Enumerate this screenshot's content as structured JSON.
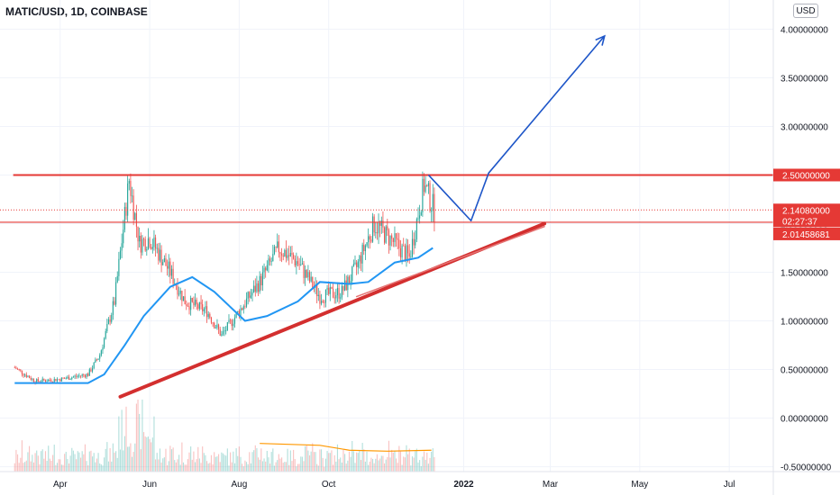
{
  "header": {
    "symbol": "MATIC/USD, 1D, COINBASE",
    "currency": "USD"
  },
  "chart_data": {
    "type": "candlestick",
    "y_ticks": [
      "4.00000000",
      "3.50000000",
      "3.00000000",
      "2.50000000",
      "2.00000000",
      "1.50000000",
      "1.00000000",
      "0.50000000",
      "0.00000000",
      "-0.50000000"
    ],
    "y_tick_values": [
      4.0,
      3.5,
      3.0,
      2.5,
      2.0,
      1.5,
      1.0,
      0.5,
      0.0,
      -0.5
    ],
    "x_ticks": [
      "Apr",
      "Jun",
      "Aug",
      "Oct",
      "2022",
      "Mar",
      "May",
      "Jul"
    ],
    "x_tick_dates": [
      "2021-04-01",
      "2021-06-01",
      "2021-08-01",
      "2021-10-01",
      "2022-01-01",
      "2022-03-01",
      "2022-05-01",
      "2022-07-01"
    ],
    "ylim": [
      -0.55,
      4.3
    ],
    "xlim": [
      "2021-02-19",
      "2022-07-31"
    ],
    "horizontal_levels": [
      {
        "value": 2.5,
        "label": "2.50000000",
        "color": "#e53935"
      },
      {
        "value": 2.0146,
        "label": "2.01458681",
        "color": "#e53935"
      }
    ],
    "current_price": {
      "value": 2.1408,
      "label": "2.14080000",
      "countdown": "02:27:37",
      "color": "#e53935"
    },
    "close_series": [
      {
        "date": "2021-03-01",
        "value": 0.52
      },
      {
        "date": "2021-03-15",
        "value": 0.38
      },
      {
        "date": "2021-04-01",
        "value": 0.4
      },
      {
        "date": "2021-04-20",
        "value": 0.45
      },
      {
        "date": "2021-04-28",
        "value": 0.65
      },
      {
        "date": "2021-05-08",
        "value": 1.2
      },
      {
        "date": "2021-05-18",
        "value": 2.45
      },
      {
        "date": "2021-05-25",
        "value": 1.8
      },
      {
        "date": "2021-06-01",
        "value": 1.85
      },
      {
        "date": "2021-06-15",
        "value": 1.5
      },
      {
        "date": "2021-06-25",
        "value": 1.2
      },
      {
        "date": "2021-07-10",
        "value": 1.1
      },
      {
        "date": "2021-07-20",
        "value": 0.85
      },
      {
        "date": "2021-08-01",
        "value": 1.1
      },
      {
        "date": "2021-08-15",
        "value": 1.4
      },
      {
        "date": "2021-08-28",
        "value": 1.75
      },
      {
        "date": "2021-09-10",
        "value": 1.6
      },
      {
        "date": "2021-09-25",
        "value": 1.25
      },
      {
        "date": "2021-10-10",
        "value": 1.3
      },
      {
        "date": "2021-10-20",
        "value": 1.55
      },
      {
        "date": "2021-11-01",
        "value": 2.0
      },
      {
        "date": "2021-11-15",
        "value": 1.8
      },
      {
        "date": "2021-11-25",
        "value": 1.65
      },
      {
        "date": "2021-12-05",
        "value": 2.4
      },
      {
        "date": "2021-12-12",
        "value": 2.14
      }
    ],
    "moving_average": [
      {
        "date": "2021-03-01",
        "value": 0.36
      },
      {
        "date": "2021-04-20",
        "value": 0.36
      },
      {
        "date": "2021-05-01",
        "value": 0.45
      },
      {
        "date": "2021-05-15",
        "value": 0.75
      },
      {
        "date": "2021-05-28",
        "value": 1.05
      },
      {
        "date": "2021-06-15",
        "value": 1.35
      },
      {
        "date": "2021-06-30",
        "value": 1.45
      },
      {
        "date": "2021-07-15",
        "value": 1.3
      },
      {
        "date": "2021-08-05",
        "value": 1.0
      },
      {
        "date": "2021-08-20",
        "value": 1.05
      },
      {
        "date": "2021-09-10",
        "value": 1.2
      },
      {
        "date": "2021-09-25",
        "value": 1.4
      },
      {
        "date": "2021-10-15",
        "value": 1.38
      },
      {
        "date": "2021-10-28",
        "value": 1.4
      },
      {
        "date": "2021-11-15",
        "value": 1.6
      },
      {
        "date": "2021-12-01",
        "value": 1.65
      },
      {
        "date": "2021-12-11",
        "value": 1.75
      }
    ],
    "trendlines": [
      {
        "from": {
          "date": "2021-05-12",
          "value": 0.22
        },
        "to": {
          "date": "2022-02-25",
          "value": 2.0
        },
        "color": "#d32f2f",
        "width": 4
      },
      {
        "from": {
          "date": "2021-10-20",
          "value": 1.25
        },
        "to": {
          "date": "2022-02-25",
          "value": 1.97
        },
        "color": "#e57373",
        "width": 1.5
      }
    ],
    "projection_arrow": [
      {
        "date": "2021-12-08",
        "value": 2.5
      },
      {
        "date": "2022-01-06",
        "value": 2.03
      },
      {
        "date": "2022-01-18",
        "value": 2.52
      },
      {
        "date": "2022-04-07",
        "value": 3.93
      }
    ],
    "volume_ma": [
      {
        "date": "2021-08-15",
        "value": -0.26
      },
      {
        "date": "2021-09-25",
        "value": -0.28
      },
      {
        "date": "2021-10-15",
        "value": -0.33
      },
      {
        "date": "2021-11-10",
        "value": -0.34
      },
      {
        "date": "2021-12-10",
        "value": -0.33
      }
    ],
    "grid": true,
    "legend_position": "none",
    "colors": {
      "up": "#26a69a",
      "down": "#ef5350",
      "ma": "#2196f3",
      "arrow": "#1e56c8",
      "volume_ma": "#ff9800",
      "level": "#e53935"
    }
  }
}
